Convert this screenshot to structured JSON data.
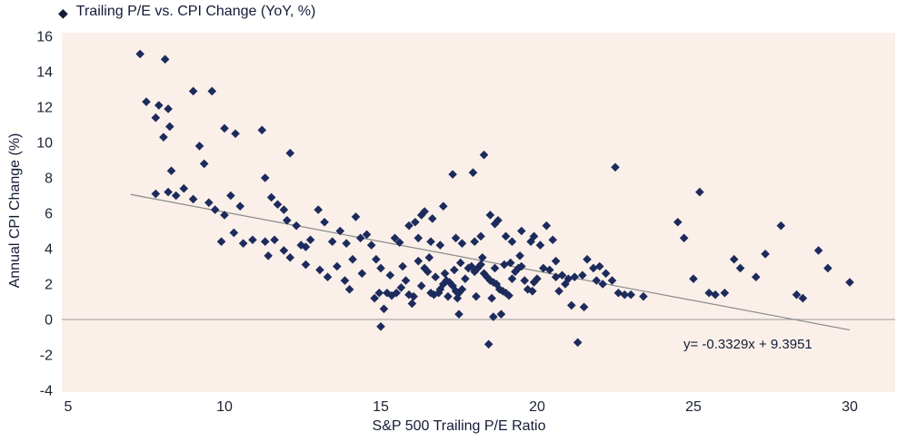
{
  "chart_data": {
    "type": "scatter",
    "legend_label": "Trailing P/E vs. CPI Change (YoY, %)",
    "xlabel": "S&P 500 Trailing P/E Ratio",
    "ylabel": "Annual CPI Change (%)",
    "xlim": [
      5,
      30
    ],
    "ylim": [
      -4,
      16
    ],
    "x_ticks": [
      5,
      10,
      15,
      20,
      25,
      30
    ],
    "y_ticks": [
      16,
      14,
      12,
      10,
      8,
      6,
      4,
      2,
      0,
      -2,
      -4
    ],
    "grid": false,
    "legend_position": "top-left",
    "marker": "diamond",
    "legend_marker_glyph": "◆",
    "colors": {
      "marker": "#1c2b5c",
      "trendline": "#8a8a8a",
      "zero_line": "#9a9a9a",
      "plot_bg": "#faf0e9",
      "text": "#131c36"
    },
    "zero_line_y": 0,
    "trendline": {
      "equation_label": "y= -0.3329x + 9.3951",
      "slope": -0.3329,
      "intercept": 9.3951,
      "x_start": 7,
      "x_end": 30
    },
    "points": [
      [
        7.3,
        15.0
      ],
      [
        8.1,
        14.7
      ],
      [
        7.5,
        12.3
      ],
      [
        7.9,
        12.1
      ],
      [
        8.2,
        11.9
      ],
      [
        9.0,
        12.9
      ],
      [
        9.6,
        12.9
      ],
      [
        7.8,
        11.4
      ],
      [
        8.25,
        10.9
      ],
      [
        8.05,
        10.3
      ],
      [
        9.2,
        9.8
      ],
      [
        10.0,
        10.8
      ],
      [
        10.35,
        10.5
      ],
      [
        9.35,
        8.8
      ],
      [
        8.3,
        8.4
      ],
      [
        7.8,
        7.1
      ],
      [
        8.2,
        7.2
      ],
      [
        8.45,
        7.0
      ],
      [
        8.7,
        7.4
      ],
      [
        9.0,
        6.8
      ],
      [
        9.5,
        6.6
      ],
      [
        9.7,
        6.2
      ],
      [
        10.2,
        7.0
      ],
      [
        10.5,
        6.4
      ],
      [
        10.0,
        5.9
      ],
      [
        10.3,
        4.9
      ],
      [
        10.6,
        4.3
      ],
      [
        10.9,
        4.5
      ],
      [
        9.9,
        4.4
      ],
      [
        11.2,
        10.7
      ],
      [
        12.1,
        9.4
      ],
      [
        11.3,
        8.0
      ],
      [
        11.5,
        6.9
      ],
      [
        11.7,
        6.5
      ],
      [
        11.9,
        6.2
      ],
      [
        12.0,
        5.6
      ],
      [
        12.3,
        5.3
      ],
      [
        12.45,
        4.2
      ],
      [
        12.6,
        4.1
      ],
      [
        12.75,
        4.5
      ],
      [
        11.9,
        3.9
      ],
      [
        12.1,
        3.5
      ],
      [
        12.6,
        3.1
      ],
      [
        11.4,
        3.6
      ],
      [
        11.6,
        4.5
      ],
      [
        11.3,
        4.4
      ],
      [
        13.0,
        6.2
      ],
      [
        13.2,
        5.5
      ],
      [
        13.45,
        4.4
      ],
      [
        13.6,
        3.0
      ],
      [
        13.05,
        2.8
      ],
      [
        13.3,
        2.4
      ],
      [
        13.85,
        2.2
      ],
      [
        14.0,
        1.7
      ],
      [
        13.9,
        4.3
      ],
      [
        14.2,
        5.8
      ],
      [
        14.35,
        4.6
      ],
      [
        13.7,
        5.0
      ],
      [
        14.1,
        3.4
      ],
      [
        14.4,
        2.6
      ],
      [
        14.55,
        4.8
      ],
      [
        14.7,
        4.2
      ],
      [
        14.85,
        3.4
      ],
      [
        15.0,
        2.9
      ],
      [
        15.2,
        1.5
      ],
      [
        15.35,
        1.35
      ],
      [
        14.95,
        1.5
      ],
      [
        14.8,
        1.2
      ],
      [
        15.1,
        0.6
      ],
      [
        15.0,
        -0.4
      ],
      [
        15.5,
        1.5
      ],
      [
        15.65,
        1.8
      ],
      [
        15.8,
        2.2
      ],
      [
        15.9,
        1.4
      ],
      [
        16.05,
        1.3
      ],
      [
        15.45,
        4.6
      ],
      [
        15.6,
        4.35
      ],
      [
        15.9,
        5.3
      ],
      [
        16.1,
        5.5
      ],
      [
        15.3,
        2.5
      ],
      [
        15.7,
        3.0
      ],
      [
        16.0,
        0.9
      ],
      [
        16.2,
        3.3
      ],
      [
        16.4,
        2.9
      ],
      [
        16.5,
        2.7
      ],
      [
        16.3,
        1.9
      ],
      [
        16.6,
        1.5
      ],
      [
        16.7,
        1.4
      ],
      [
        16.85,
        1.5
      ],
      [
        16.9,
        1.7
      ],
      [
        17.0,
        2.0
      ],
      [
        17.1,
        2.2
      ],
      [
        17.2,
        2.1
      ],
      [
        17.3,
        1.9
      ],
      [
        17.4,
        1.6
      ],
      [
        17.5,
        1.5
      ],
      [
        17.6,
        1.7
      ],
      [
        17.7,
        2.3
      ],
      [
        17.8,
        2.9
      ],
      [
        17.9,
        3.0
      ],
      [
        18.0,
        2.7
      ],
      [
        18.1,
        2.9
      ],
      [
        18.2,
        3.1
      ],
      [
        18.3,
        2.6
      ],
      [
        18.4,
        2.4
      ],
      [
        18.5,
        2.2
      ],
      [
        18.6,
        2.1
      ],
      [
        18.7,
        2.0
      ],
      [
        18.8,
        1.7
      ],
      [
        18.9,
        1.6
      ],
      [
        19.0,
        1.5
      ],
      [
        19.1,
        1.35
      ],
      [
        19.2,
        2.3
      ],
      [
        19.3,
        2.7
      ],
      [
        19.4,
        2.9
      ],
      [
        19.5,
        3.0
      ],
      [
        19.6,
        2.2
      ],
      [
        19.7,
        1.7
      ],
      [
        19.85,
        1.6
      ],
      [
        19.9,
        2.1
      ],
      [
        20.0,
        2.3
      ],
      [
        17.15,
        1.3
      ],
      [
        17.45,
        1.2
      ],
      [
        18.05,
        1.3
      ],
      [
        18.55,
        1.2
      ],
      [
        16.75,
        2.4
      ],
      [
        17.05,
        2.6
      ],
      [
        17.35,
        2.8
      ],
      [
        18.65,
        2.9
      ],
      [
        18.95,
        3.1
      ],
      [
        19.15,
        3.2
      ],
      [
        17.55,
        3.2
      ],
      [
        16.55,
        3.5
      ],
      [
        18.25,
        3.5
      ],
      [
        19.45,
        3.6
      ],
      [
        18.85,
        0.3
      ],
      [
        18.6,
        0.15
      ],
      [
        17.5,
        0.3
      ],
      [
        18.45,
        -1.4
      ],
      [
        16.4,
        6.1
      ],
      [
        16.65,
        5.7
      ],
      [
        17.0,
        6.4
      ],
      [
        17.3,
        8.2
      ],
      [
        18.3,
        9.3
      ],
      [
        17.95,
        8.3
      ],
      [
        18.5,
        5.9
      ],
      [
        18.65,
        5.4
      ],
      [
        18.75,
        5.6
      ],
      [
        19.0,
        4.7
      ],
      [
        19.2,
        4.4
      ],
      [
        18.2,
        4.7
      ],
      [
        18.0,
        4.4
      ],
      [
        17.6,
        4.3
      ],
      [
        17.4,
        4.6
      ],
      [
        16.9,
        4.2
      ],
      [
        16.6,
        4.4
      ],
      [
        16.2,
        4.6
      ],
      [
        19.5,
        5.0
      ],
      [
        19.8,
        4.4
      ],
      [
        20.3,
        5.3
      ],
      [
        16.3,
        5.9
      ],
      [
        19.9,
        4.7
      ],
      [
        20.1,
        4.2
      ],
      [
        20.5,
        4.5
      ],
      [
        20.2,
        2.9
      ],
      [
        20.4,
        2.8
      ],
      [
        20.6,
        2.4
      ],
      [
        20.8,
        2.5
      ],
      [
        21.0,
        2.3
      ],
      [
        21.2,
        2.4
      ],
      [
        21.45,
        2.5
      ],
      [
        21.6,
        3.4
      ],
      [
        21.8,
        2.9
      ],
      [
        22.0,
        3.0
      ],
      [
        22.2,
        2.6
      ],
      [
        22.4,
        2.2
      ],
      [
        22.6,
        1.5
      ],
      [
        22.8,
        1.4
      ],
      [
        21.1,
        0.8
      ],
      [
        21.5,
        0.7
      ],
      [
        22.5,
        8.6
      ],
      [
        23.0,
        1.4
      ],
      [
        23.4,
        1.3
      ],
      [
        24.5,
        5.5
      ],
      [
        24.7,
        4.6
      ],
      [
        25.0,
        2.3
      ],
      [
        25.2,
        7.2
      ],
      [
        25.5,
        1.5
      ],
      [
        25.7,
        1.4
      ],
      [
        26.0,
        1.5
      ],
      [
        26.3,
        3.4
      ],
      [
        26.5,
        2.9
      ],
      [
        21.3,
        -1.3
      ],
      [
        20.7,
        1.6
      ],
      [
        20.9,
        2.0
      ],
      [
        22.1,
        2.0
      ],
      [
        20.6,
        3.3
      ],
      [
        21.9,
        2.2
      ],
      [
        27.0,
        2.4
      ],
      [
        27.3,
        3.7
      ],
      [
        27.8,
        5.3
      ],
      [
        28.3,
        1.4
      ],
      [
        28.5,
        1.2
      ],
      [
        29.0,
        3.9
      ],
      [
        29.3,
        2.9
      ],
      [
        30.0,
        2.1
      ]
    ]
  }
}
